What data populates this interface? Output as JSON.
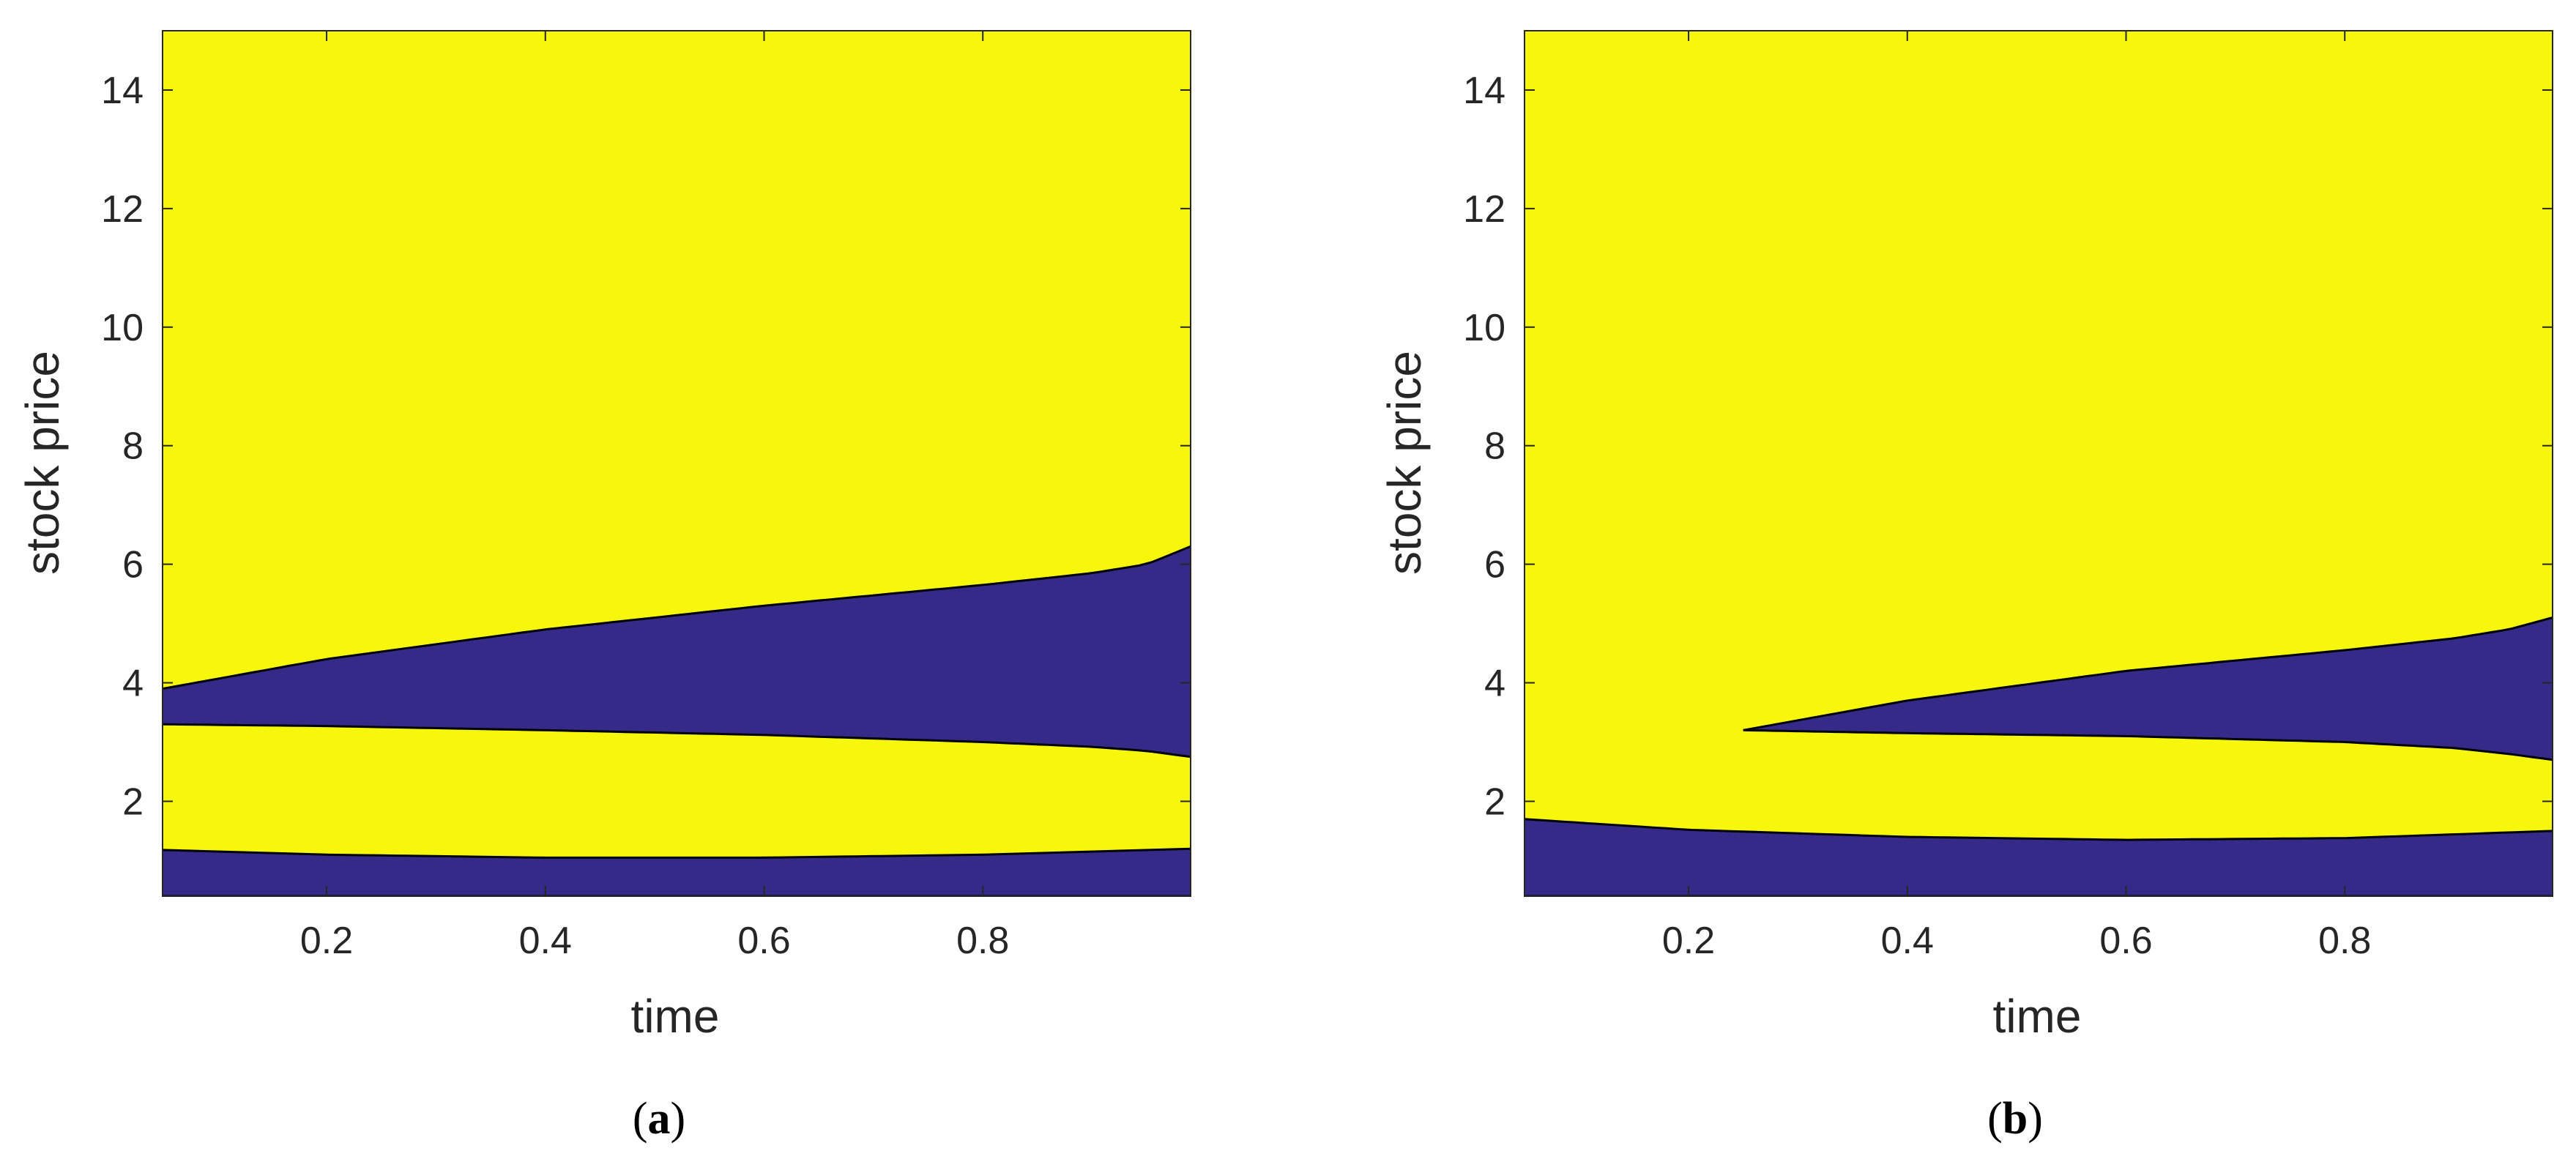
{
  "chart_data": [
    {
      "type": "area",
      "panel": "(a)",
      "caption_letter": "a",
      "xlabel": "time",
      "ylabel": "stock price",
      "xlim": [
        0.05,
        0.99
      ],
      "ylim": [
        0.4,
        15
      ],
      "xticks": [
        0.2,
        0.4,
        0.6,
        0.8
      ],
      "xtick_labels": [
        "0.2",
        "0.4",
        "0.6",
        "0.8"
      ],
      "yticks": [
        2,
        4,
        6,
        8,
        10,
        12,
        14
      ],
      "ytick_labels": [
        "2",
        "4",
        "6",
        "8",
        "10",
        "12",
        "14"
      ],
      "grid": false,
      "colors": {
        "background_region": "#f7f70e",
        "region": "#352a87",
        "boundary": "#000000"
      },
      "regions": [
        {
          "fill": "#352a87",
          "upper": {
            "x": [
              0.05,
              0.2,
              0.4,
              0.6,
              0.8,
              0.9,
              0.95,
              0.99
            ],
            "y": [
              3.9,
              4.4,
              4.9,
              5.3,
              5.65,
              5.85,
              6.0,
              6.3
            ]
          },
          "lower": {
            "x": [
              0.05,
              0.2,
              0.4,
              0.6,
              0.8,
              0.9,
              0.95,
              0.99
            ],
            "y": [
              3.3,
              3.27,
              3.2,
              3.12,
              3.0,
              2.92,
              2.85,
              2.75
            ]
          }
        },
        {
          "fill": "#352a87",
          "upper": {
            "x": [
              0.05,
              0.2,
              0.4,
              0.6,
              0.8,
              0.99
            ],
            "y": [
              1.18,
              1.1,
              1.05,
              1.05,
              1.1,
              1.2
            ]
          },
          "lower": {
            "x": [
              0.05,
              0.99
            ],
            "y": [
              0.4,
              0.4
            ]
          }
        }
      ]
    },
    {
      "type": "area",
      "panel": "(b)",
      "caption_letter": "b",
      "xlabel": "time",
      "ylabel": "stock price",
      "xlim": [
        0.05,
        0.99
      ],
      "ylim": [
        0.4,
        15
      ],
      "xticks": [
        0.2,
        0.4,
        0.6,
        0.8
      ],
      "xtick_labels": [
        "0.2",
        "0.4",
        "0.6",
        "0.8"
      ],
      "yticks": [
        2,
        4,
        6,
        8,
        10,
        12,
        14
      ],
      "ytick_labels": [
        "2",
        "4",
        "6",
        "8",
        "10",
        "12",
        "14"
      ],
      "grid": false,
      "colors": {
        "background_region": "#f7f70e",
        "region": "#352a87",
        "boundary": "#000000"
      },
      "regions": [
        {
          "fill": "#352a87",
          "upper": {
            "x": [
              0.25,
              0.4,
              0.6,
              0.8,
              0.9,
              0.95,
              0.99
            ],
            "y": [
              3.2,
              3.7,
              4.2,
              4.55,
              4.75,
              4.9,
              5.1
            ]
          },
          "lower": {
            "x": [
              0.25,
              0.4,
              0.6,
              0.8,
              0.9,
              0.95,
              0.99
            ],
            "y": [
              3.2,
              3.15,
              3.1,
              3.0,
              2.9,
              2.8,
              2.7
            ]
          }
        },
        {
          "fill": "#352a87",
          "upper": {
            "x": [
              0.05,
              0.2,
              0.4,
              0.6,
              0.8,
              0.99
            ],
            "y": [
              1.7,
              1.52,
              1.4,
              1.35,
              1.38,
              1.5
            ]
          },
          "lower": {
            "x": [
              0.05,
              0.99
            ],
            "y": [
              0.4,
              0.4
            ]
          }
        }
      ]
    }
  ]
}
